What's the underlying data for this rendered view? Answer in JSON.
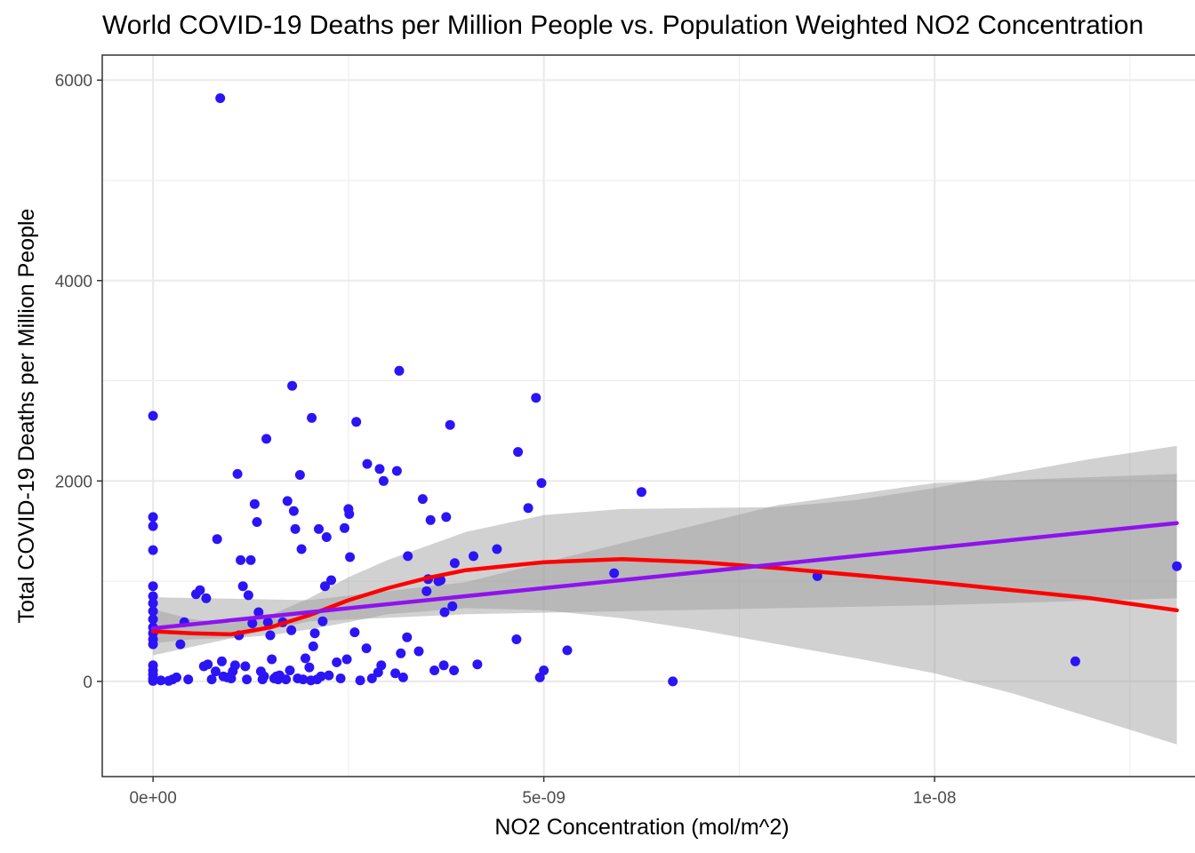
{
  "chart_data": {
    "type": "scatter",
    "title": "World COVID-19 Deaths per Million People vs. Population Weighted NO2 Concentration",
    "xlabel": "NO2 Concentration (mol/m^2)",
    "ylabel": "Total COVID-19 Deaths per Million People",
    "xlim": [
      -6.5e-10,
      1.34e-08
    ],
    "ylim": [
      -950,
      6250
    ],
    "x_ticks": [
      {
        "value": 0,
        "label": "0e+00"
      },
      {
        "value": 5e-09,
        "label": "5e-09"
      },
      {
        "value": 1e-08,
        "label": "1e-08"
      }
    ],
    "y_ticks": [
      {
        "value": 0,
        "label": "0"
      },
      {
        "value": 2000,
        "label": "2000"
      },
      {
        "value": 4000,
        "label": "4000"
      },
      {
        "value": 6000,
        "label": "6000"
      }
    ],
    "grid": true,
    "colors": {
      "points": "#2b14f5",
      "linear_fit": "#8f12ee",
      "loess_fit": "#ff0000",
      "confidence_band": "#999999",
      "grid": "#ebebeb",
      "panel_border": "#333333"
    },
    "points": [
      [
        8.6e-10,
        5820
      ],
      [
        0,
        2650
      ],
      [
        0,
        1640
      ],
      [
        0,
        1550
      ],
      [
        0,
        1310
      ],
      [
        0,
        950
      ],
      [
        0,
        850
      ],
      [
        0,
        780
      ],
      [
        0,
        700
      ],
      [
        0,
        620
      ],
      [
        0,
        540
      ],
      [
        0,
        480
      ],
      [
        0,
        420
      ],
      [
        0,
        370
      ],
      [
        0,
        160
      ],
      [
        0,
        110
      ],
      [
        0,
        70
      ],
      [
        0,
        30
      ],
      [
        0,
        5
      ],
      [
        1e-10,
        10
      ],
      [
        2e-10,
        5
      ],
      [
        2.5e-10,
        20
      ],
      [
        3e-10,
        40
      ],
      [
        3.5e-10,
        370
      ],
      [
        4e-10,
        590
      ],
      [
        4.5e-10,
        20
      ],
      [
        5.5e-10,
        870
      ],
      [
        6e-10,
        910
      ],
      [
        6.5e-10,
        150
      ],
      [
        7e-10,
        170
      ],
      [
        6.8e-10,
        830
      ],
      [
        7.5e-10,
        20
      ],
      [
        8e-10,
        100
      ],
      [
        8.2e-10,
        1420
      ],
      [
        8.8e-10,
        200
      ],
      [
        9e-10,
        50
      ],
      [
        9.5e-10,
        40
      ],
      [
        1e-09,
        30
      ],
      [
        1.02e-09,
        100
      ],
      [
        1.05e-09,
        160
      ],
      [
        1.08e-09,
        2070
      ],
      [
        1.1e-09,
        460
      ],
      [
        1.12e-09,
        1210
      ],
      [
        1.15e-09,
        950
      ],
      [
        1.18e-09,
        150
      ],
      [
        1.2e-09,
        20
      ],
      [
        1.22e-09,
        860
      ],
      [
        1.25e-09,
        1210
      ],
      [
        1.27e-09,
        580
      ],
      [
        1.3e-09,
        1770
      ],
      [
        1.33e-09,
        1590
      ],
      [
        1.35e-09,
        690
      ],
      [
        1.38e-09,
        100
      ],
      [
        1.4e-09,
        20
      ],
      [
        1.42e-09,
        50
      ],
      [
        1.45e-09,
        2420
      ],
      [
        1.47e-09,
        590
      ],
      [
        1.5e-09,
        460
      ],
      [
        1.52e-09,
        220
      ],
      [
        1.55e-09,
        30
      ],
      [
        1.58e-09,
        50
      ],
      [
        1.6e-09,
        20
      ],
      [
        1.62e-09,
        60
      ],
      [
        1.66e-09,
        590
      ],
      [
        1.7e-09,
        20
      ],
      [
        1.72e-09,
        1800
      ],
      [
        1.75e-09,
        110
      ],
      [
        1.77e-09,
        510
      ],
      [
        1.78e-09,
        2950
      ],
      [
        1.8e-09,
        1700
      ],
      [
        1.82e-09,
        1520
      ],
      [
        1.85e-09,
        30
      ],
      [
        1.88e-09,
        2060
      ],
      [
        1.9e-09,
        1320
      ],
      [
        1.92e-09,
        20
      ],
      [
        1.95e-09,
        230
      ],
      [
        2e-09,
        140
      ],
      [
        2.02e-09,
        10
      ],
      [
        2.03e-09,
        2630
      ],
      [
        2.05e-09,
        350
      ],
      [
        2.07e-09,
        480
      ],
      [
        2.1e-09,
        20
      ],
      [
        2.12e-09,
        1520
      ],
      [
        2.15e-09,
        50
      ],
      [
        2.17e-09,
        600
      ],
      [
        2.2e-09,
        950
      ],
      [
        2.22e-09,
        1440
      ],
      [
        2.25e-09,
        60
      ],
      [
        2.28e-09,
        1010
      ],
      [
        2.35e-09,
        190
      ],
      [
        2.4e-09,
        30
      ],
      [
        2.45e-09,
        1530
      ],
      [
        2.48e-09,
        220
      ],
      [
        2.5e-09,
        1720
      ],
      [
        2.51e-09,
        1670
      ],
      [
        2.52e-09,
        1240
      ],
      [
        2.58e-09,
        490
      ],
      [
        2.6e-09,
        2590
      ],
      [
        2.65e-09,
        10
      ],
      [
        2.73e-09,
        330
      ],
      [
        2.74e-09,
        2170
      ],
      [
        2.8e-09,
        30
      ],
      [
        2.88e-09,
        90
      ],
      [
        2.9e-09,
        2120
      ],
      [
        2.92e-09,
        160
      ],
      [
        2.95e-09,
        2000
      ],
      [
        3.1e-09,
        80
      ],
      [
        3.12e-09,
        2100
      ],
      [
        3.15e-09,
        3100
      ],
      [
        3.17e-09,
        280
      ],
      [
        3.2e-09,
        40
      ],
      [
        3.25e-09,
        440
      ],
      [
        3.26e-09,
        1250
      ],
      [
        3.4e-09,
        300
      ],
      [
        3.45e-09,
        1820
      ],
      [
        3.5e-09,
        900
      ],
      [
        3.52e-09,
        1020
      ],
      [
        3.55e-09,
        1610
      ],
      [
        3.6e-09,
        110
      ],
      [
        3.65e-09,
        1000
      ],
      [
        3.68e-09,
        1010
      ],
      [
        3.72e-09,
        160
      ],
      [
        3.73e-09,
        690
      ],
      [
        3.75e-09,
        1640
      ],
      [
        3.8e-09,
        2560
      ],
      [
        3.83e-09,
        750
      ],
      [
        3.85e-09,
        110
      ],
      [
        3.86e-09,
        1180
      ],
      [
        4.1e-09,
        1250
      ],
      [
        4.15e-09,
        170
      ],
      [
        4.4e-09,
        1320
      ],
      [
        4.65e-09,
        420
      ],
      [
        4.67e-09,
        2290
      ],
      [
        4.8e-09,
        1730
      ],
      [
        4.9e-09,
        2830
      ],
      [
        4.95e-09,
        40
      ],
      [
        4.97e-09,
        1980
      ],
      [
        5e-09,
        110
      ],
      [
        5.3e-09,
        310
      ],
      [
        5.9e-09,
        1080
      ],
      [
        6.25e-09,
        1890
      ],
      [
        6.65e-09,
        0
      ],
      [
        8.5e-09,
        1050
      ],
      [
        1.18e-08,
        200
      ],
      [
        1.31e-08,
        1150
      ]
    ],
    "linear_fit": {
      "x": [
        0,
        1.31e-08
      ],
      "y": [
        530,
        1580
      ],
      "band_lower": [
        [
          0,
          260
        ],
        [
          2e-09,
          600
        ],
        [
          4e-09,
          670
        ],
        [
          6e-09,
          700
        ],
        [
          8e-09,
          730
        ],
        [
          1e-08,
          760
        ],
        [
          1.31e-08,
          830
        ]
      ],
      "band_upper": [
        [
          0,
          840
        ],
        [
          2e-09,
          810
        ],
        [
          4e-09,
          990
        ],
        [
          6e-09,
          1380
        ],
        [
          8e-09,
          1760
        ],
        [
          1e-08,
          1980
        ],
        [
          1.31e-08,
          2070
        ]
      ]
    },
    "loess_fit": {
      "x": [
        0,
        5e-10,
        1e-09,
        1.5e-09,
        2e-09,
        2.5e-09,
        3e-09,
        3.5e-09,
        4e-09,
        5e-09,
        6e-09,
        7e-09,
        8e-09,
        9e-09,
        1e-08,
        1.1e-08,
        1.2e-08,
        1.31e-08
      ],
      "y": [
        500,
        480,
        470,
        540,
        660,
        810,
        930,
        1030,
        1110,
        1190,
        1220,
        1190,
        1130,
        1060,
        990,
        910,
        830,
        710
      ],
      "band_lower": [
        [
          0,
          380
        ],
        [
          5e-10,
          420
        ],
        [
          1e-09,
          430
        ],
        [
          1.5e-09,
          460
        ],
        [
          2e-09,
          520
        ],
        [
          2.5e-09,
          590
        ],
        [
          3e-09,
          670
        ],
        [
          4e-09,
          730
        ],
        [
          5e-09,
          710
        ],
        [
          6e-09,
          630
        ],
        [
          7e-09,
          510
        ],
        [
          8e-09,
          370
        ],
        [
          9e-09,
          230
        ],
        [
          1e-08,
          80
        ],
        [
          1.1e-08,
          -120
        ],
        [
          1.2e-08,
          -360
        ],
        [
          1.31e-08,
          -630
        ]
      ],
      "band_upper": [
        [
          0,
          720
        ],
        [
          5e-10,
          620
        ],
        [
          1e-09,
          580
        ],
        [
          1.5e-09,
          660
        ],
        [
          2e-09,
          830
        ],
        [
          2.5e-09,
          1040
        ],
        [
          3e-09,
          1210
        ],
        [
          4e-09,
          1490
        ],
        [
          5e-09,
          1660
        ],
        [
          6e-09,
          1720
        ],
        [
          7e-09,
          1730
        ],
        [
          8e-09,
          1740
        ],
        [
          9e-09,
          1810
        ],
        [
          1e-08,
          1930
        ],
        [
          1.1e-08,
          2080
        ],
        [
          1.2e-08,
          2220
        ],
        [
          1.31e-08,
          2350
        ]
      ]
    }
  }
}
